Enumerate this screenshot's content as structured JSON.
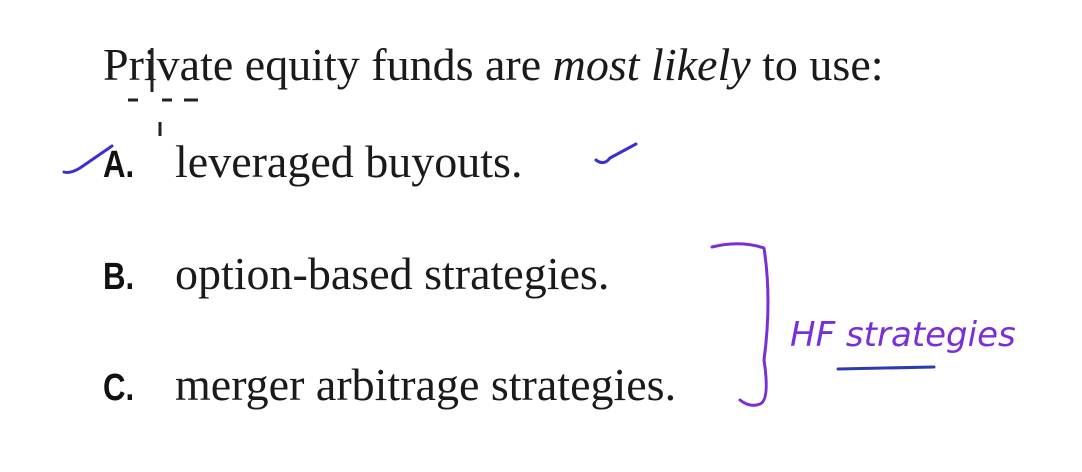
{
  "question": {
    "prefix": "Private equity funds are ",
    "emphasis": "most likely",
    "suffix": " to use:"
  },
  "options": [
    {
      "letter": "A.",
      "text": "leveraged buyouts."
    },
    {
      "letter": "B.",
      "text": "option-based strategies."
    },
    {
      "letter": "C.",
      "text": "merger arbitrage strategies."
    }
  ],
  "annotations": {
    "bracket_note": "HF strategies",
    "correct_mark": "check",
    "colors": {
      "check_ink": "#3a2fd0",
      "note_ink": "#7a2fd6",
      "underline_ink": "#2d3bb0",
      "cursor": "#222222"
    }
  }
}
